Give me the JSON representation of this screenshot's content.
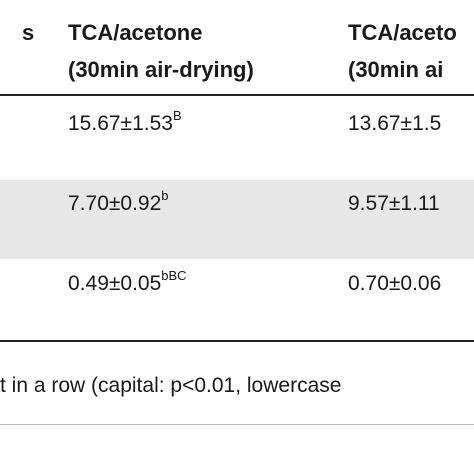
{
  "header": [
    [
      "s"
    ],
    [
      "TCA/acetone",
      "(30min air-drying)"
    ],
    [
      "TCA/aceto",
      "(30min ai"
    ]
  ],
  "rows": [
    [
      {
        "text": "15.67±1.53",
        "sup": "B"
      },
      {
        "text": "13.67±1.5"
      }
    ],
    [
      {
        "text": "7.70±0.92",
        "sup": "b"
      },
      {
        "text": "9.57±1.11"
      }
    ],
    [
      {
        "text": "0.49±0.05",
        "sup": "bBC"
      },
      {
        "text": "0.70±0.06"
      }
    ]
  ],
  "footnote": "t in a row (capital: p<0.01, lowercase"
}
